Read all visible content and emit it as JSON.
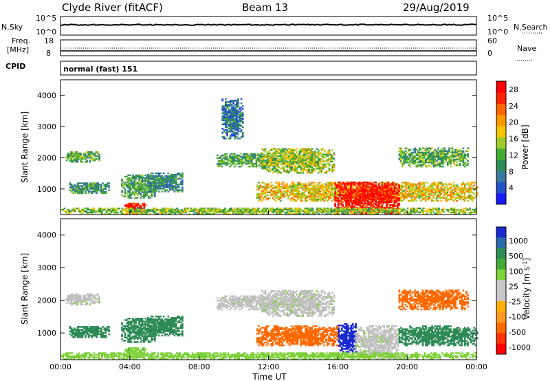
{
  "header": {
    "station": "Clyde River (fitACF)",
    "beam": "Beam 13",
    "date": "29/Aug/2019"
  },
  "top_panels": {
    "nsky_label": "N.Sky",
    "nsky_ticks": [
      "10^5",
      "10^0"
    ],
    "nsearch_label": "N.Search",
    "nsearch_ticks": [
      "10^5",
      "10^0"
    ],
    "freq_label_line1": "Freq.",
    "freq_label_line2": "[MHz]",
    "freq_ticks": [
      "18",
      "8"
    ],
    "nave_label": "Nave",
    "nave_ticks": [
      "60",
      "0"
    ],
    "cpid_label": "CPID",
    "cpid_value": "normal (fast) 151"
  },
  "colors": {
    "power_scale": [
      "#1a1aff",
      "#2255cc",
      "#3a7a9a",
      "#2e8b57",
      "#44aa33",
      "#9ccc2a",
      "#f5c400",
      "#ff9900",
      "#ff6600",
      "#ff2200",
      "#ff0000"
    ],
    "velocity_scale": [
      "#ff0000",
      "#ff3300",
      "#ff6a00",
      "#ff9a22",
      "#c8c8c8",
      "#c8c8c8",
      "#7fd13a",
      "#44aa33",
      "#2e8b57",
      "#2a6aaa",
      "#1a2ad0"
    ],
    "ground_scatter": "#c0c0c0"
  },
  "chart_data": [
    {
      "type": "heatmap",
      "name_hint": "power",
      "ylabel": "Slant Range [km]",
      "y_ticks": [
        1000,
        2000,
        3000,
        4000
      ],
      "ylim": [
        180,
        4500
      ],
      "x_ticks": [
        "00:00",
        "04:00",
        "08:00",
        "12:00",
        "16:00",
        "20:00",
        "00:00"
      ],
      "xlim_hours": [
        0,
        24
      ],
      "colorbar": {
        "label": "Power [dB]",
        "ticks": [
          "4",
          "8",
          "12",
          "16",
          "20",
          "24",
          "28"
        ],
        "range": [
          0,
          30
        ]
      },
      "echo_regions": [
        {
          "t0": 0.3,
          "t1": 2.2,
          "r0": 1850,
          "r1": 2200,
          "value": 12
        },
        {
          "t0": 0.5,
          "t1": 2.8,
          "r0": 850,
          "r1": 1200,
          "value": 10
        },
        {
          "t0": 3.5,
          "t1": 5.5,
          "r0": 700,
          "r1": 1450,
          "value": 11
        },
        {
          "t0": 3.7,
          "t1": 4.9,
          "r0": 200,
          "r1": 550,
          "value": 27
        },
        {
          "t0": 5.0,
          "t1": 7.0,
          "r0": 900,
          "r1": 1500,
          "value": 9
        },
        {
          "t0": 9.0,
          "t1": 12.5,
          "r0": 1700,
          "r1": 2150,
          "value": 11
        },
        {
          "t0": 11.5,
          "t1": 15.8,
          "r0": 1500,
          "r1": 2300,
          "value": 15
        },
        {
          "t0": 11.3,
          "t1": 24.0,
          "r0": 600,
          "r1": 1200,
          "value": 18
        },
        {
          "t0": 15.8,
          "t1": 19.5,
          "r0": 200,
          "r1": 1200,
          "value": 28
        },
        {
          "t0": 0.0,
          "t1": 24.0,
          "r0": 180,
          "r1": 380,
          "value": 14
        },
        {
          "t0": 19.5,
          "t1": 23.5,
          "r0": 1700,
          "r1": 2300,
          "value": 12
        },
        {
          "t0": 9.3,
          "t1": 10.5,
          "r0": 2600,
          "r1": 3900,
          "value": 7
        }
      ]
    },
    {
      "type": "heatmap",
      "name_hint": "velocity",
      "ylabel": "Slant Range [km]",
      "y_ticks": [
        1000,
        2000,
        3000,
        4000
      ],
      "ylim": [
        180,
        4500
      ],
      "x_ticks": [
        "00:00",
        "04:00",
        "08:00",
        "12:00",
        "16:00",
        "20:00",
        "00:00"
      ],
      "xlim_hours": [
        0,
        24
      ],
      "xlabel": "Time UT",
      "colorbar": {
        "label": "Velocity [m s^-1]",
        "ticks": [
          "1000",
          "500",
          "100",
          "25",
          "-25",
          "-100",
          "-500",
          "-1000"
        ]
      },
      "echo_regions": [
        {
          "t0": 0.3,
          "t1": 2.2,
          "r0": 1850,
          "r1": 2200,
          "value": "ground"
        },
        {
          "t0": 0.5,
          "t1": 2.8,
          "r0": 850,
          "r1": 1200,
          "value": 200
        },
        {
          "t0": 3.5,
          "t1": 5.5,
          "r0": 700,
          "r1": 1450,
          "value": 150
        },
        {
          "t0": 3.7,
          "t1": 4.9,
          "r0": 200,
          "r1": 550,
          "value": 80
        },
        {
          "t0": 5.0,
          "t1": 7.0,
          "r0": 900,
          "r1": 1500,
          "value": 200
        },
        {
          "t0": 9.0,
          "t1": 12.5,
          "r0": 1700,
          "r1": 2150,
          "value": "ground"
        },
        {
          "t0": 11.5,
          "t1": 15.8,
          "r0": 1500,
          "r1": 2300,
          "value": "ground"
        },
        {
          "t0": 11.3,
          "t1": 16.0,
          "r0": 600,
          "r1": 1200,
          "value": -300
        },
        {
          "t0": 16.0,
          "t1": 17.0,
          "r0": 400,
          "r1": 1300,
          "value": 800
        },
        {
          "t0": 17.0,
          "t1": 19.5,
          "r0": 200,
          "r1": 1200,
          "value": "ground"
        },
        {
          "t0": 19.5,
          "t1": 24.0,
          "r0": 600,
          "r1": 1200,
          "value": 150
        },
        {
          "t0": 0.0,
          "t1": 24.0,
          "r0": 180,
          "r1": 380,
          "value": 50
        },
        {
          "t0": 19.5,
          "t1": 23.5,
          "r0": 1700,
          "r1": 2300,
          "value": -200
        }
      ]
    }
  ]
}
